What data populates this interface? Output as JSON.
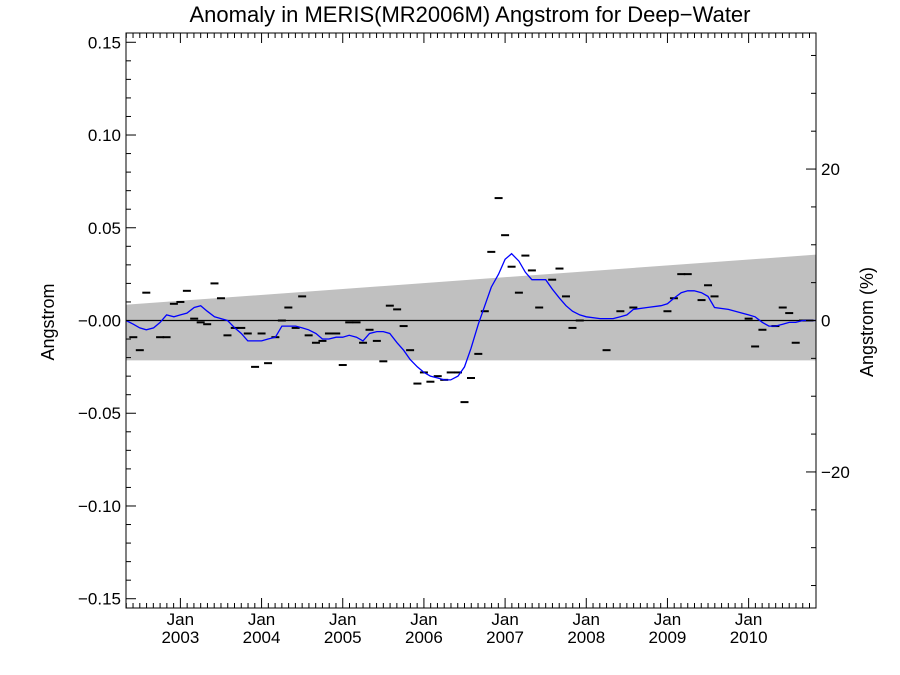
{
  "chart_data": {
    "type": "line",
    "title": "Anomaly in MERIS(MR2006M) Angstrom for Deep−Water",
    "ylabel": "Angstrom",
    "ylabel_right": "Angstrom (%)",
    "xlim": [
      2002.33,
      2010.83
    ],
    "ylim": [
      -0.155,
      0.155
    ],
    "yticks_left": [
      "0.15",
      "0.10",
      "0.05",
      "−0.00",
      "−0.05",
      "−0.10",
      "−0.15"
    ],
    "ytick_values_left": [
      0.15,
      0.1,
      0.05,
      0.0,
      -0.05,
      -0.1,
      -0.15
    ],
    "yticks_right": [
      "20",
      "0",
      "−20"
    ],
    "ytick_values_right": [
      20,
      0,
      -20
    ],
    "right_axis_scale": "20 % = 0.08165 Angstrom",
    "x_month_label": "Jan",
    "x_year_labels": [
      "2003",
      "2004",
      "2005",
      "2006",
      "2007",
      "2008",
      "2009",
      "2010"
    ],
    "colors": {
      "smoothed_line": "#0000ff",
      "monthly_marks": "#000000",
      "band": "#c0c0c0",
      "zero_line": "#000000"
    },
    "band": {
      "lower": [
        [
          2002.33,
          -0.0215
        ],
        [
          2010.83,
          -0.0215
        ]
      ],
      "upper": [
        [
          2002.33,
          0.0085
        ],
        [
          2010.83,
          0.0355
        ]
      ]
    },
    "series": [
      {
        "type": "monthly-marks",
        "points": [
          [
            2002.42,
            -0.009
          ],
          [
            2002.5,
            -0.016
          ],
          [
            2002.58,
            0.015
          ],
          [
            2002.75,
            -0.009
          ],
          [
            2002.83,
            -0.009
          ],
          [
            2002.92,
            0.009
          ],
          [
            2003.0,
            0.01
          ],
          [
            2003.08,
            0.016
          ],
          [
            2003.17,
            0.001
          ],
          [
            2003.25,
            -0.001
          ],
          [
            2003.33,
            -0.002
          ],
          [
            2003.42,
            0.02
          ],
          [
            2003.5,
            0.012
          ],
          [
            2003.58,
            -0.008
          ],
          [
            2003.67,
            -0.004
          ],
          [
            2003.75,
            -0.004
          ],
          [
            2003.83,
            -0.007
          ],
          [
            2003.92,
            -0.025
          ],
          [
            2004.0,
            -0.007
          ],
          [
            2004.08,
            -0.023
          ],
          [
            2004.17,
            -0.009
          ],
          [
            2004.25,
            0.0
          ],
          [
            2004.33,
            0.007
          ],
          [
            2004.42,
            -0.004
          ],
          [
            2004.5,
            0.013
          ],
          [
            2004.58,
            -0.008
          ],
          [
            2004.67,
            -0.012
          ],
          [
            2004.75,
            -0.011
          ],
          [
            2004.83,
            -0.007
          ],
          [
            2004.92,
            -0.007
          ],
          [
            2005.0,
            -0.024
          ],
          [
            2005.08,
            -0.001
          ],
          [
            2005.17,
            -0.001
          ],
          [
            2005.25,
            -0.012
          ],
          [
            2005.33,
            -0.005
          ],
          [
            2005.42,
            -0.011
          ],
          [
            2005.5,
            -0.022
          ],
          [
            2005.58,
            0.008
          ],
          [
            2005.67,
            0.006
          ],
          [
            2005.75,
            -0.003
          ],
          [
            2005.83,
            -0.016
          ],
          [
            2005.92,
            -0.034
          ],
          [
            2006.0,
            -0.028
          ],
          [
            2006.08,
            -0.033
          ],
          [
            2006.17,
            -0.03
          ],
          [
            2006.25,
            -0.032
          ],
          [
            2006.33,
            -0.028
          ],
          [
            2006.42,
            -0.028
          ],
          [
            2006.5,
            -0.044
          ],
          [
            2006.58,
            -0.031
          ],
          [
            2006.67,
            -0.018
          ],
          [
            2006.75,
            0.005
          ],
          [
            2006.83,
            0.037
          ],
          [
            2006.92,
            0.066
          ],
          [
            2007.0,
            0.046
          ],
          [
            2007.08,
            0.029
          ],
          [
            2007.17,
            0.015
          ],
          [
            2007.25,
            0.035
          ],
          [
            2007.33,
            0.027
          ],
          [
            2007.42,
            0.007
          ],
          [
            2007.58,
            0.022
          ],
          [
            2007.67,
            0.028
          ],
          [
            2007.75,
            0.013
          ],
          [
            2007.83,
            -0.004
          ],
          [
            2007.92,
            0.0
          ],
          [
            2008.25,
            -0.016
          ],
          [
            2008.42,
            0.005
          ],
          [
            2008.58,
            0.007
          ],
          [
            2009.0,
            0.005
          ],
          [
            2009.08,
            0.012
          ],
          [
            2009.17,
            0.025
          ],
          [
            2009.25,
            0.025
          ],
          [
            2009.42,
            0.011
          ],
          [
            2009.5,
            0.019
          ],
          [
            2009.58,
            0.013
          ],
          [
            2010.0,
            0.001
          ],
          [
            2010.08,
            -0.014
          ],
          [
            2010.17,
            -0.005
          ],
          [
            2010.33,
            -0.003
          ],
          [
            2010.42,
            0.007
          ],
          [
            2010.5,
            0.004
          ],
          [
            2010.58,
            -0.012
          ],
          [
            2010.67,
            0.0
          ],
          [
            2010.75,
            0.0
          ]
        ]
      },
      {
        "type": "smoothed",
        "points": [
          [
            2002.33,
            0.0
          ],
          [
            2002.42,
            -0.002
          ],
          [
            2002.5,
            -0.004
          ],
          [
            2002.58,
            -0.005
          ],
          [
            2002.67,
            -0.004
          ],
          [
            2002.75,
            -0.001
          ],
          [
            2002.83,
            0.003
          ],
          [
            2002.92,
            0.002
          ],
          [
            2003.0,
            0.003
          ],
          [
            2003.08,
            0.004
          ],
          [
            2003.17,
            0.007
          ],
          [
            2003.25,
            0.008
          ],
          [
            2003.33,
            0.005
          ],
          [
            2003.42,
            0.002
          ],
          [
            2003.5,
            0.001
          ],
          [
            2003.58,
            0.0
          ],
          [
            2003.67,
            -0.004
          ],
          [
            2003.75,
            -0.007
          ],
          [
            2003.83,
            -0.011
          ],
          [
            2003.92,
            -0.011
          ],
          [
            2004.0,
            -0.011
          ],
          [
            2004.08,
            -0.01
          ],
          [
            2004.17,
            -0.009
          ],
          [
            2004.25,
            -0.003
          ],
          [
            2004.33,
            -0.003
          ],
          [
            2004.42,
            -0.003
          ],
          [
            2004.5,
            -0.004
          ],
          [
            2004.58,
            -0.005
          ],
          [
            2004.67,
            -0.007
          ],
          [
            2004.75,
            -0.01
          ],
          [
            2004.83,
            -0.01
          ],
          [
            2004.92,
            -0.009
          ],
          [
            2005.0,
            -0.009
          ],
          [
            2005.08,
            -0.008
          ],
          [
            2005.17,
            -0.009
          ],
          [
            2005.25,
            -0.011
          ],
          [
            2005.33,
            -0.007
          ],
          [
            2005.42,
            -0.006
          ],
          [
            2005.5,
            -0.006
          ],
          [
            2005.58,
            -0.007
          ],
          [
            2005.67,
            -0.012
          ],
          [
            2005.75,
            -0.016
          ],
          [
            2005.83,
            -0.021
          ],
          [
            2005.92,
            -0.025
          ],
          [
            2006.0,
            -0.028
          ],
          [
            2006.08,
            -0.03
          ],
          [
            2006.17,
            -0.031
          ],
          [
            2006.25,
            -0.032
          ],
          [
            2006.33,
            -0.032
          ],
          [
            2006.42,
            -0.03
          ],
          [
            2006.5,
            -0.025
          ],
          [
            2006.58,
            -0.015
          ],
          [
            2006.67,
            -0.002
          ],
          [
            2006.75,
            0.008
          ],
          [
            2006.83,
            0.018
          ],
          [
            2006.92,
            0.025
          ],
          [
            2007.0,
            0.033
          ],
          [
            2007.08,
            0.036
          ],
          [
            2007.17,
            0.032
          ],
          [
            2007.25,
            0.026
          ],
          [
            2007.33,
            0.022
          ],
          [
            2007.42,
            0.022
          ],
          [
            2007.5,
            0.022
          ],
          [
            2007.58,
            0.017
          ],
          [
            2007.67,
            0.012
          ],
          [
            2007.75,
            0.008
          ],
          [
            2007.83,
            0.005
          ],
          [
            2007.92,
            0.003
          ],
          [
            2008.0,
            0.002
          ],
          [
            2008.17,
            0.001
          ],
          [
            2008.33,
            0.001
          ],
          [
            2008.42,
            0.002
          ],
          [
            2008.5,
            0.003
          ],
          [
            2008.58,
            0.006
          ],
          [
            2008.75,
            0.007
          ],
          [
            2008.92,
            0.008
          ],
          [
            2009.0,
            0.009
          ],
          [
            2009.08,
            0.012
          ],
          [
            2009.17,
            0.015
          ],
          [
            2009.25,
            0.016
          ],
          [
            2009.33,
            0.016
          ],
          [
            2009.42,
            0.015
          ],
          [
            2009.5,
            0.013
          ],
          [
            2009.58,
            0.007
          ],
          [
            2009.75,
            0.006
          ],
          [
            2009.92,
            0.004
          ],
          [
            2010.0,
            0.003
          ],
          [
            2010.08,
            0.002
          ],
          [
            2010.17,
            -0.001
          ],
          [
            2010.25,
            -0.003
          ],
          [
            2010.33,
            -0.003
          ],
          [
            2010.42,
            -0.002
          ],
          [
            2010.5,
            -0.001
          ],
          [
            2010.58,
            -0.001
          ],
          [
            2010.67,
            0.0
          ],
          [
            2010.75,
            0.0
          ],
          [
            2010.83,
            0.0
          ]
        ]
      }
    ]
  }
}
